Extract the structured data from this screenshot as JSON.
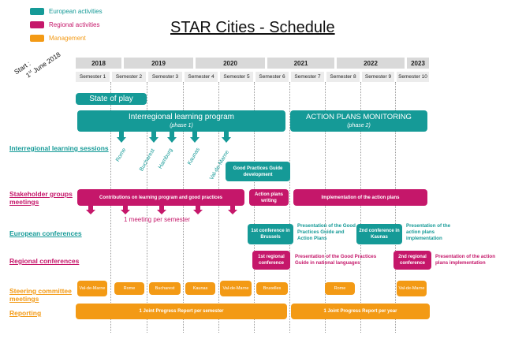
{
  "legend": [
    {
      "label": "European activities",
      "color": "#159a97"
    },
    {
      "label": "Regional activities",
      "color": "#c5176a"
    },
    {
      "label": "Management",
      "color": "#f39a15"
    }
  ],
  "title": "STAR Cities - Schedule",
  "start": {
    "line1": "Start :",
    "line2_sup": "st",
    "line2_pre": "1",
    "line2_post": " June 2018"
  },
  "years": [
    "2018",
    "2019",
    "2020",
    "2021",
    "2022",
    "2023"
  ],
  "semesters": [
    "Semester 1",
    "Semester 2",
    "Semester 3",
    "Semester 4",
    "Semester 5",
    "Semester 6",
    "Semester 7",
    "Semester 8",
    "Semester 9",
    "Semester 10"
  ],
  "rows": {
    "learning": "Interregional learning sessions",
    "stakeholder": "Stakeholder groups meetings",
    "european": "European conferences",
    "regional": "Regional conferences",
    "steering": "Steering committee meetings",
    "reporting": "Reporting"
  },
  "bars": {
    "state_of_play": "State of play",
    "learning_program": "Interregional learning program",
    "learning_phase": "(phase 1)",
    "monitoring": "ACTION PLANS MONITORING",
    "monitoring_phase": "(phase 2)",
    "gpg_dev": "Good Practices Guide development",
    "contributions": "Contributions on learning program and good practices",
    "action_plans_writing": "Action plans writing",
    "implementation": "Implementation of the action plans",
    "conf_brussels": "1st conference in Brussels",
    "conf_kaunas": "2nd conference in Kaunas",
    "regional_1": "1st regional conference",
    "regional_2": "2nd regional conference",
    "report1": "1 Joint Progress Report per semester",
    "report2": "1 Joint Progress Report per year"
  },
  "cities": [
    "Rome",
    "Bucharest",
    "Hamburg",
    "Kaunas",
    "Val-de-Marne"
  ],
  "meeting_note": "1 meeting per semester",
  "notes": {
    "eu1": "Presentation of the Good Practices Guide and Action Plans",
    "eu2": "Presentation of the action plans implementation",
    "reg1": "Presentation of the Good Practices Guide in national languages",
    "reg2": "Presentation of the action plans implementation"
  },
  "steering": [
    "Val-de-Marne",
    "Rome",
    "Bucharest",
    "Kaunas",
    "Val-de-Marne",
    "Bruxelles",
    "Rome",
    "Val-de-Marne"
  ]
}
